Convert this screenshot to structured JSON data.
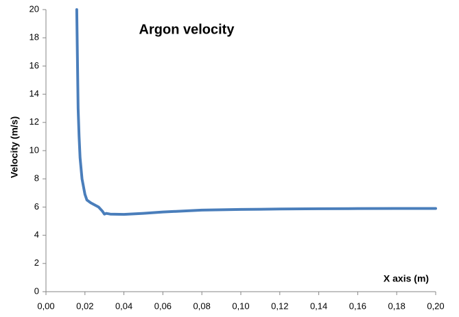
{
  "chart_data": {
    "type": "line",
    "title": "Argon velocity",
    "x_label": "X axis (m)",
    "y_label": "Velocity  (m/s)",
    "x": [
      0.0158,
      0.0162,
      0.0165,
      0.017,
      0.0175,
      0.0185,
      0.02,
      0.021,
      0.023,
      0.027,
      0.029,
      0.03,
      0.031,
      0.033,
      0.04,
      0.05,
      0.06,
      0.08,
      0.1,
      0.12,
      0.14,
      0.16,
      0.18,
      0.2
    ],
    "series": [
      {
        "name": "Argon velocity",
        "color": "#4a7ebb",
        "values": [
          20,
          16,
          13,
          11,
          9.5,
          8,
          6.9,
          6.5,
          6.3,
          6.0,
          5.7,
          5.5,
          5.55,
          5.5,
          5.48,
          5.55,
          5.65,
          5.78,
          5.83,
          5.86,
          5.88,
          5.89,
          5.9,
          5.9
        ]
      }
    ],
    "xlim": [
      0,
      0.2
    ],
    "ylim": [
      0,
      20
    ],
    "xticks": [
      {
        "value": 0,
        "label": "0,00"
      },
      {
        "value": 0.02,
        "label": "0,02"
      },
      {
        "value": 0.04,
        "label": "0,04"
      },
      {
        "value": 0.06,
        "label": "0,06"
      },
      {
        "value": 0.08,
        "label": "0,08"
      },
      {
        "value": 0.1,
        "label": "0,10"
      },
      {
        "value": 0.12,
        "label": "0,12"
      },
      {
        "value": 0.14,
        "label": "0,14"
      },
      {
        "value": 0.16,
        "label": "0,16"
      },
      {
        "value": 0.18,
        "label": "0,18"
      },
      {
        "value": 0.2,
        "label": "0,20"
      }
    ],
    "yticks": [
      0,
      2,
      4,
      6,
      8,
      10,
      12,
      14,
      16,
      18,
      20
    ],
    "grid": false
  }
}
